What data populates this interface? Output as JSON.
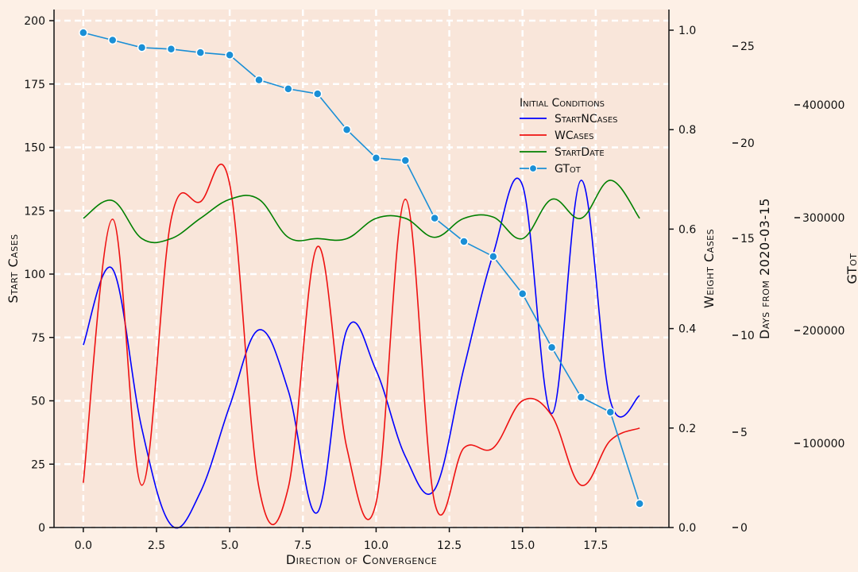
{
  "colors": {
    "page_bg": "#fdf0e6",
    "plot_bg": "#f9e6da",
    "grid": "#ffffff",
    "axis": "#111111",
    "StartNCases": "#0000ff",
    "WCases": "#ee1111",
    "StartDate": "#008000",
    "GTot": "#1a8fd6"
  },
  "chart_data": {
    "type": "line",
    "grid": true,
    "legend_placement": "upper-right",
    "legend_title": "Initial Conditions",
    "xlabel": "Direction of Convergence",
    "x_ticks": [
      "0.0",
      "2.5",
      "5.0",
      "7.5",
      "10.0",
      "12.5",
      "15.0",
      "17.5"
    ],
    "xlim": [
      -1,
      20
    ],
    "axes": {
      "left": {
        "label": "Start Cases",
        "range": [
          0,
          205
        ],
        "ticks": [
          "0",
          "25",
          "50",
          "75",
          "100",
          "125",
          "150",
          "175",
          "200"
        ]
      },
      "right1": {
        "label": "Weight Cases",
        "range": [
          0,
          1.0
        ],
        "ticks": [
          "0.0",
          "0.2",
          "0.4",
          "0.6",
          "0.8",
          "1.0"
        ]
      },
      "right2": {
        "label": "Days from 2020-03-15",
        "ticks": [
          "0",
          "5",
          "10",
          "15",
          "20",
          "25"
        ]
      },
      "right3": {
        "label": "GTot",
        "ticks": [
          "100000",
          "200000",
          "300000",
          "400000"
        ]
      }
    },
    "x": [
      0,
      1,
      2,
      3,
      4,
      5,
      6,
      7,
      8,
      9,
      10,
      11,
      12,
      13,
      14,
      15,
      16,
      17,
      18,
      19
    ],
    "series": [
      {
        "name": "StartNCases",
        "axis": "left",
        "marker": false,
        "values": [
          72,
          102,
          39,
          1,
          14,
          48,
          78,
          54,
          6,
          78,
          62,
          28,
          15,
          63,
          108,
          135,
          45,
          137,
          50,
          52
        ]
      },
      {
        "name": "WCases",
        "axis": "right1",
        "marker": false,
        "values": [
          0.09,
          0.62,
          0.085,
          0.62,
          0.655,
          0.69,
          0.08,
          0.08,
          0.565,
          0.16,
          0.05,
          0.66,
          0.05,
          0.16,
          0.16,
          0.255,
          0.225,
          0.085,
          0.175,
          0.2
        ]
      },
      {
        "name": "StartDate",
        "axis": "left",
        "marker": false,
        "values": [
          122,
          129,
          114,
          114,
          122,
          129.5,
          129.5,
          114.5,
          114,
          114,
          122,
          122,
          114.5,
          122,
          122.5,
          114,
          129.5,
          122,
          137,
          122
        ]
      },
      {
        "name": "GTot",
        "axis": "right1",
        "marker": true,
        "values": [
          0.995,
          0.98,
          0.965,
          0.962,
          0.955,
          0.95,
          0.9,
          0.882,
          0.872,
          0.8,
          0.743,
          0.738,
          0.622,
          0.575,
          0.545,
          0.47,
          0.362,
          0.262,
          0.232,
          0.048
        ]
      }
    ]
  }
}
